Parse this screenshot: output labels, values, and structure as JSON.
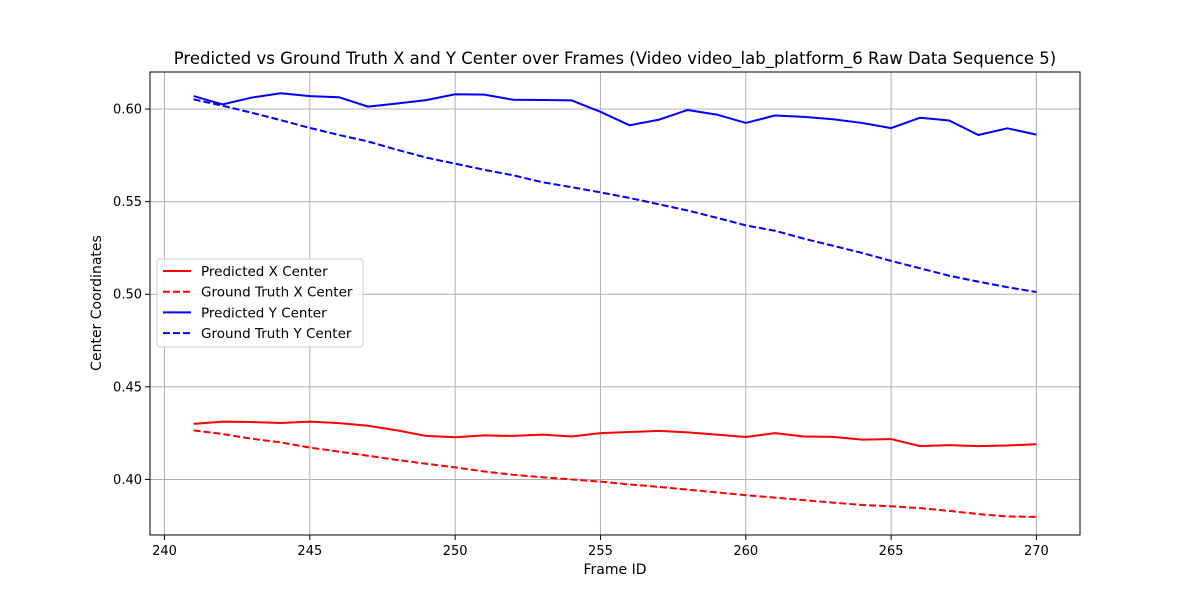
{
  "chart_data": {
    "type": "line",
    "title": "Predicted vs Ground Truth X and Y Center over Frames (Video video_lab_platform_6 Raw Data Sequence 5)",
    "xlabel": "Frame ID",
    "ylabel": "Center Coordinates",
    "xlim": [
      239.5,
      271.5
    ],
    "ylim": [
      0.37,
      0.62
    ],
    "xticks": [
      240,
      245,
      250,
      255,
      260,
      265,
      270
    ],
    "yticks": [
      0.4,
      0.45,
      0.5,
      0.55,
      0.6
    ],
    "xtick_labels": [
      "240",
      "245",
      "250",
      "255",
      "260",
      "265",
      "270"
    ],
    "ytick_labels": [
      "0.40",
      "0.45",
      "0.50",
      "0.55",
      "0.60"
    ],
    "grid": true,
    "legend_position": "center-left",
    "x": [
      241,
      242,
      243,
      244,
      245,
      246,
      247,
      248,
      249,
      250,
      251,
      252,
      253,
      254,
      255,
      256,
      257,
      258,
      259,
      260,
      261,
      262,
      263,
      264,
      265,
      266,
      267,
      268,
      269,
      270
    ],
    "series": [
      {
        "name": "Predicted X Center",
        "color": "#ff0000",
        "dash": "solid",
        "values": [
          0.43,
          0.4312,
          0.431,
          0.4305,
          0.4312,
          0.4304,
          0.429,
          0.4265,
          0.4235,
          0.4228,
          0.4238,
          0.4235,
          0.4242,
          0.4232,
          0.425,
          0.4256,
          0.4262,
          0.4254,
          0.4242,
          0.4229,
          0.425,
          0.4232,
          0.423,
          0.4215,
          0.4218,
          0.418,
          0.4185,
          0.418,
          0.4183,
          0.419
        ]
      },
      {
        "name": "Ground Truth X Center",
        "color": "#ff0000",
        "dash": "dashed",
        "values": [
          0.4265,
          0.4245,
          0.422,
          0.42,
          0.4172,
          0.415,
          0.4128,
          0.4105,
          0.4085,
          0.4065,
          0.4043,
          0.4025,
          0.4012,
          0.4,
          0.3988,
          0.3973,
          0.396,
          0.3945,
          0.393,
          0.3915,
          0.3902,
          0.3888,
          0.3875,
          0.3862,
          0.3855,
          0.3845,
          0.383,
          0.3813,
          0.38,
          0.3798
        ]
      },
      {
        "name": "Predicted Y Center",
        "color": "#0000ff",
        "dash": "solid",
        "values": [
          0.607,
          0.6025,
          0.6062,
          0.6085,
          0.607,
          0.6064,
          0.6013,
          0.603,
          0.6048,
          0.608,
          0.6078,
          0.605,
          0.6049,
          0.6047,
          0.5985,
          0.5912,
          0.5942,
          0.5995,
          0.597,
          0.5925,
          0.5965,
          0.5958,
          0.5945,
          0.5925,
          0.5897,
          0.5953,
          0.5938,
          0.586,
          0.5896,
          0.5862
        ]
      },
      {
        "name": "Ground Truth Y Center",
        "color": "#0000ff",
        "dash": "dashed",
        "values": [
          0.6052,
          0.6018,
          0.598,
          0.594,
          0.5898,
          0.586,
          0.5825,
          0.578,
          0.5738,
          0.5705,
          0.5672,
          0.5642,
          0.5605,
          0.5578,
          0.555,
          0.552,
          0.5486,
          0.5452,
          0.5413,
          0.5372,
          0.5343,
          0.53,
          0.5262,
          0.5223,
          0.518,
          0.514,
          0.51,
          0.5068,
          0.5038,
          0.5012
        ]
      }
    ]
  }
}
